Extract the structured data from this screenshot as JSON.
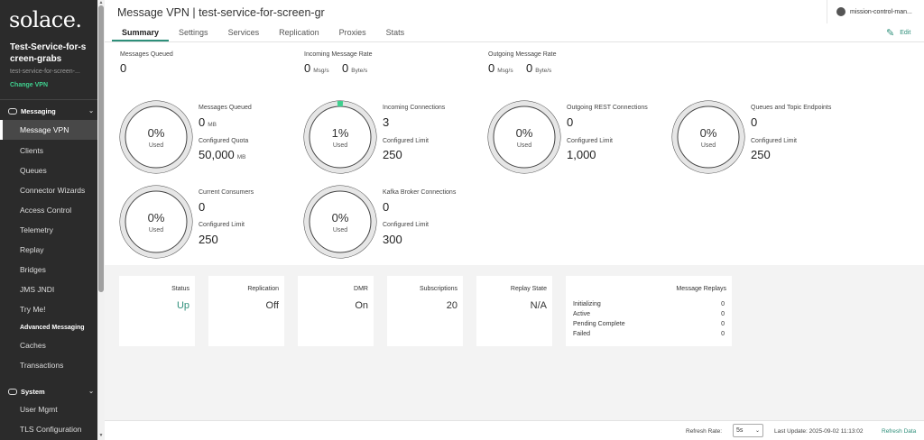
{
  "sidebar": {
    "logo": "solace.",
    "service_name": "Test-Service-for-screen-grabs",
    "service_sub": "test-service-for-screen-...",
    "change_vpn": "Change VPN",
    "messaging_section": "Messaging",
    "system_section": "System",
    "items": [
      {
        "label": "Message VPN"
      },
      {
        "label": "Clients"
      },
      {
        "label": "Queues"
      },
      {
        "label": "Connector Wizards"
      },
      {
        "label": "Access Control"
      },
      {
        "label": "Telemetry"
      },
      {
        "label": "Replay"
      },
      {
        "label": "Bridges"
      },
      {
        "label": "JMS JNDI"
      },
      {
        "label": "Try Me!"
      },
      {
        "label": "Advanced Messaging"
      },
      {
        "label": "Caches"
      },
      {
        "label": "Transactions"
      }
    ],
    "system_items": [
      {
        "label": "User Mgmt"
      },
      {
        "label": "TLS Configuration"
      }
    ]
  },
  "header": {
    "title": "Message VPN | test-service-for-screen-gr",
    "user": "mission-control-man...",
    "edit_label": "Edit"
  },
  "tabs": [
    {
      "label": "Summary"
    },
    {
      "label": "Settings"
    },
    {
      "label": "Services"
    },
    {
      "label": "Replication"
    },
    {
      "label": "Proxies"
    },
    {
      "label": "Stats"
    }
  ],
  "top_metrics": {
    "messages_queued": {
      "label": "Messages Queued",
      "value": "0"
    },
    "incoming_rate": {
      "label": "Incoming Message Rate",
      "msg_value": "0",
      "msg_unit": "Msg/s",
      "byte_value": "0",
      "byte_unit": "Byte/s"
    },
    "outgoing_rate": {
      "label": "Outgoing Message Rate",
      "msg_value": "0",
      "msg_unit": "Msg/s",
      "byte_value": "0",
      "byte_unit": "Byte/s"
    }
  },
  "gauges": [
    {
      "pct": "0%",
      "used": "Used",
      "fraction": 0,
      "label1": "Messages Queued",
      "value1": "0",
      "unit1": "MB",
      "label2": "Configured Quota",
      "value2": "50,000",
      "unit2": "MB"
    },
    {
      "pct": "1%",
      "used": "Used",
      "fraction": 0.01,
      "label1": "Incoming Connections",
      "value1": "3",
      "unit1": "",
      "label2": "Configured Limit",
      "value2": "250",
      "unit2": ""
    },
    {
      "pct": "0%",
      "used": "Used",
      "fraction": 0,
      "label1": "Outgoing REST Connections",
      "value1": "0",
      "unit1": "",
      "label2": "Configured Limit",
      "value2": "1,000",
      "unit2": ""
    },
    {
      "pct": "0%",
      "used": "Used",
      "fraction": 0,
      "label1": "Queues and Topic Endpoints",
      "value1": "0",
      "unit1": "",
      "label2": "Configured Limit",
      "value2": "250",
      "unit2": ""
    },
    {
      "pct": "0%",
      "used": "Used",
      "fraction": 0,
      "label1": "Current Consumers",
      "value1": "0",
      "unit1": "",
      "label2": "Configured Limit",
      "value2": "250",
      "unit2": ""
    },
    {
      "pct": "0%",
      "used": "Used",
      "fraction": 0,
      "label1": "Kafka Broker Connections",
      "value1": "0",
      "unit1": "",
      "label2": "Configured Limit",
      "value2": "300",
      "unit2": ""
    }
  ],
  "cards": [
    {
      "label": "Status",
      "value": "Up"
    },
    {
      "label": "Replication",
      "value": "Off"
    },
    {
      "label": "DMR",
      "value": "On"
    },
    {
      "label": "Subscriptions",
      "value": "20"
    },
    {
      "label": "Replay State",
      "value": "N/A"
    }
  ],
  "replays": {
    "title": "Message Replays",
    "rows": [
      {
        "label": "Initializing",
        "value": "0"
      },
      {
        "label": "Active",
        "value": "0"
      },
      {
        "label": "Pending Complete",
        "value": "0"
      },
      {
        "label": "Failed",
        "value": "0"
      }
    ]
  },
  "footer": {
    "refresh_rate_label": "Refresh Rate:",
    "refresh_rate_value": "5s",
    "last_update": "Last Update: 2025-09-02 11:13:02",
    "refresh_data": "Refresh Data"
  },
  "colors": {
    "accent": "#2e8f7a",
    "gauge_fill": "#3fcf8e",
    "sidebar_bg": "#2b2b2b"
  }
}
